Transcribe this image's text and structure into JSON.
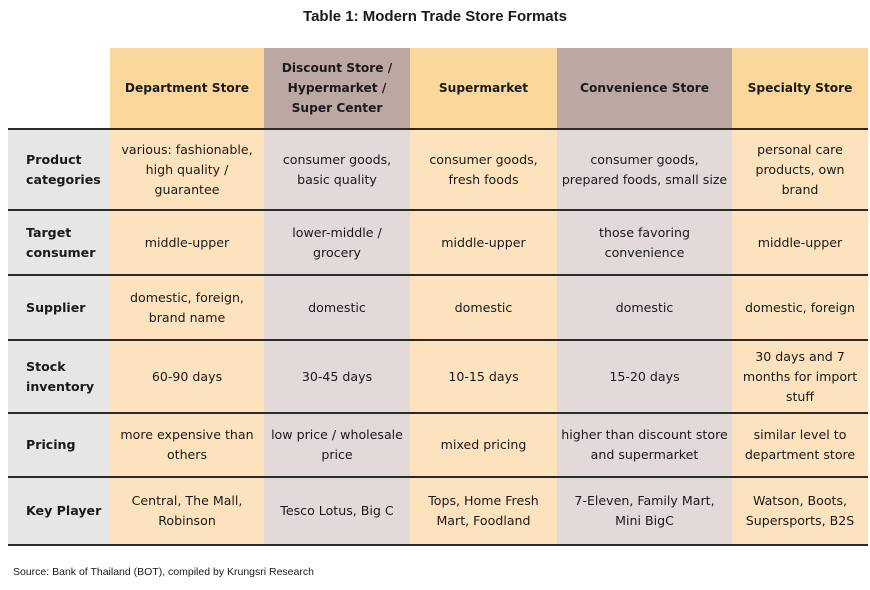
{
  "title": "Table 1:  Modern Trade Store Formats",
  "columns": [
    "Department Store",
    "Discount Store / Hypermarket / Super Center",
    "Supermarket",
    "Convenience Store",
    "Specialty Store"
  ],
  "rows": [
    {
      "label": "Product categories",
      "cells": [
        "various: fashionable, high quality / guarantee",
        "consumer goods, basic quality",
        "consumer goods, fresh foods",
        "consumer goods, prepared foods, small size",
        "personal care products, own brand"
      ]
    },
    {
      "label": "Target consumer",
      "cells": [
        "middle-upper",
        "lower-middle / grocery",
        "middle-upper",
        "those favoring convenience",
        "middle-upper"
      ]
    },
    {
      "label": "Supplier",
      "cells": [
        "domestic, foreign, brand name",
        "domestic",
        "domestic",
        "domestic",
        "domestic, foreign"
      ]
    },
    {
      "label": "Stock inventory",
      "cells": [
        "60-90 days",
        "30-45 days",
        "10-15 days",
        "15-20 days",
        "30 days and 7 months for import stuff"
      ]
    },
    {
      "label": "Pricing",
      "cells": [
        "more expensive than others",
        "low price / wholesale price",
        "mixed pricing",
        "higher than discount store and supermarket",
        "similar level to department store"
      ]
    },
    {
      "label": "Key Player",
      "cells": [
        "Central, The Mall, Robinson",
        "Tesco Lotus, Big C",
        "Tops, Home Fresh Mart, Foodland",
        "7-Eleven, Family Mart, Mini BigC",
        "Watson, Boots, Supersports, B2S"
      ]
    }
  ],
  "source": "Source: Bank of Thailand (BOT), compiled by Krungsri Research",
  "colors": {
    "header_orange": "#fbd79b",
    "header_mauve": "#bca8a3",
    "cell_orange": "#fde3bd",
    "cell_mauve": "#e2d9d8",
    "row_label": "#e6e6e6"
  }
}
